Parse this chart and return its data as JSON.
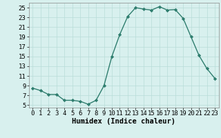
{
  "x": [
    0,
    1,
    2,
    3,
    4,
    5,
    6,
    7,
    8,
    9,
    10,
    11,
    12,
    13,
    14,
    15,
    16,
    17,
    18,
    19,
    20,
    21,
    22,
    23
  ],
  "y": [
    8.5,
    8.0,
    7.2,
    7.2,
    6.0,
    6.0,
    5.8,
    5.2,
    6.0,
    9.0,
    15.0,
    19.5,
    23.2,
    25.0,
    24.7,
    24.5,
    25.2,
    24.5,
    24.6,
    22.8,
    19.0,
    15.2,
    12.5,
    10.5
  ],
  "line_color": "#2e7d6e",
  "marker": "D",
  "marker_size": 2.2,
  "bg_color": "#d8f0ee",
  "grid_color": "#b8dcd8",
  "xlabel": "Humidex (Indice chaleur)",
  "xlim": [
    -0.5,
    23.5
  ],
  "ylim": [
    4.5,
    26
  ],
  "yticks": [
    5,
    7,
    9,
    11,
    13,
    15,
    17,
    19,
    21,
    23,
    25
  ],
  "xticks": [
    0,
    1,
    2,
    3,
    4,
    5,
    6,
    7,
    8,
    9,
    10,
    11,
    12,
    13,
    14,
    15,
    16,
    17,
    18,
    19,
    20,
    21,
    22,
    23
  ],
  "tick_fontsize": 6.5,
  "label_fontsize": 7.5,
  "line_width": 1.0
}
